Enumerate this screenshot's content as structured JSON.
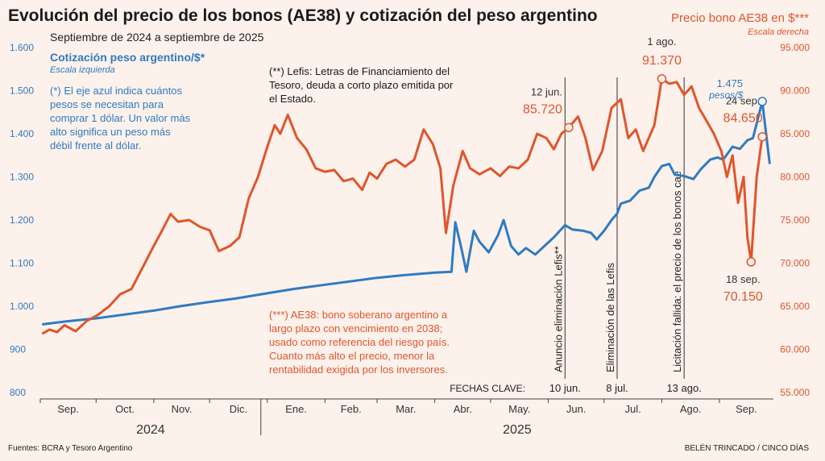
{
  "header": {
    "title": "Evolución del precio de los bonos (AE38) y cotización del peso argentino",
    "subtitle": "Septiembre de 2024 a septiembre de 2025"
  },
  "right_axis": {
    "title": "Precio bono AE38 en $***",
    "subtitle": "Escala derecha"
  },
  "left_axis": {
    "title": "Cotización peso argentino/$*",
    "subtitle": "Escala izquierda"
  },
  "notes": {
    "blue": "(*) El eje azul indica cuántos pesos se necesitan para comprar 1 dólar. Un valor más alto significa un peso más débil frente al dólar.",
    "lefis": "(**) Lefis: Letras de Financiamiento del Tesoro, deuda a corto plazo emitida por el Estado.",
    "ae38": "(***) AE38: bono soberano argentino a largo plazo con vencimiento en 2038; usado como referencia del riesgo país. Cuanto más alto el precio, menor la rentabilidad exigida por los inversores."
  },
  "footer": {
    "source": "Fuentes: BCRA y Tesoro Argentino",
    "credit": "BELÉN TRINCADO / CINCO DÍAS"
  },
  "colors": {
    "peso": "#2f7bc1",
    "bond": "#e0552b",
    "background": "#fdf1ec"
  },
  "chart_data": {
    "type": "line",
    "x_axis": {
      "months": [
        "Sep.",
        "Oct.",
        "Nov.",
        "Dic.",
        "Ene.",
        "Feb.",
        "Mar.",
        "Abr.",
        "May.",
        "Jun.",
        "Jul.",
        "Ago.",
        "Sep."
      ],
      "years": [
        "2024",
        "2025"
      ],
      "range": [
        "2024-09-01",
        "2025-09-30"
      ]
    },
    "left_axis_ticks": [
      "1.600",
      "1.500",
      "1.400",
      "1.300",
      "1.200",
      "1.100",
      "1.000",
      "900",
      "800"
    ],
    "right_axis_ticks": [
      "95.000",
      "90.000",
      "85.000",
      "80.000",
      "75.000",
      "70.000",
      "65.000",
      "60.000",
      "55.000"
    ],
    "ylim_left": [
      800,
      1600
    ],
    "ylim_right": [
      55000,
      95000
    ],
    "key_dates_label": "FECHAS CLAVE:",
    "key_dates": [
      {
        "date": "2025-06-10",
        "label": "10 jun.",
        "event": "Anuncio eliminación Lefis**"
      },
      {
        "date": "2025-07-08",
        "label": "8 jul.",
        "event": "Eliminación de las Lefis"
      },
      {
        "date": "2025-08-13",
        "label": "13 ago.",
        "event": "Licitación fallida: el precio de los bonos cae"
      }
    ],
    "series": [
      {
        "name": "Cotización peso argentino/$*",
        "axis": "left",
        "points": [
          [
            "2024-09-02",
            958
          ],
          [
            "2024-09-15",
            965
          ],
          [
            "2024-10-01",
            972
          ],
          [
            "2024-10-15",
            980
          ],
          [
            "2024-11-01",
            990
          ],
          [
            "2024-11-15",
            1000
          ],
          [
            "2024-12-01",
            1010
          ],
          [
            "2024-12-15",
            1018
          ],
          [
            "2025-01-01",
            1030
          ],
          [
            "2025-01-15",
            1040
          ],
          [
            "2025-02-01",
            1050
          ],
          [
            "2025-02-15",
            1058
          ],
          [
            "2025-03-01",
            1066
          ],
          [
            "2025-03-15",
            1072
          ],
          [
            "2025-04-01",
            1078
          ],
          [
            "2025-04-10",
            1080
          ],
          [
            "2025-04-12",
            1195
          ],
          [
            "2025-04-15",
            1140
          ],
          [
            "2025-04-18",
            1080
          ],
          [
            "2025-04-22",
            1175
          ],
          [
            "2025-04-25",
            1150
          ],
          [
            "2025-04-30",
            1125
          ],
          [
            "2025-05-05",
            1165
          ],
          [
            "2025-05-08",
            1200
          ],
          [
            "2025-05-12",
            1140
          ],
          [
            "2025-05-16",
            1120
          ],
          [
            "2025-05-20",
            1135
          ],
          [
            "2025-05-25",
            1120
          ],
          [
            "2025-05-30",
            1140
          ],
          [
            "2025-06-04",
            1160
          ],
          [
            "2025-06-10",
            1188
          ],
          [
            "2025-06-14",
            1178
          ],
          [
            "2025-06-20",
            1175
          ],
          [
            "2025-06-24",
            1170
          ],
          [
            "2025-06-27",
            1155
          ],
          [
            "2025-07-01",
            1175
          ],
          [
            "2025-07-05",
            1200
          ],
          [
            "2025-07-08",
            1215
          ],
          [
            "2025-07-10",
            1238
          ],
          [
            "2025-07-15",
            1245
          ],
          [
            "2025-07-20",
            1268
          ],
          [
            "2025-07-25",
            1275
          ],
          [
            "2025-07-28",
            1300
          ],
          [
            "2025-08-01",
            1325
          ],
          [
            "2025-08-05",
            1330
          ],
          [
            "2025-08-08",
            1305
          ],
          [
            "2025-08-13",
            1302
          ],
          [
            "2025-08-18",
            1295
          ],
          [
            "2025-08-22",
            1318
          ],
          [
            "2025-08-27",
            1340
          ],
          [
            "2025-08-31",
            1345
          ],
          [
            "2025-09-03",
            1340
          ],
          [
            "2025-09-08",
            1370
          ],
          [
            "2025-09-12",
            1365
          ],
          [
            "2025-09-16",
            1385
          ],
          [
            "2025-09-19",
            1390
          ],
          [
            "2025-09-24",
            1475
          ],
          [
            "2025-09-28",
            1330
          ]
        ]
      },
      {
        "name": "Precio bono AE38 en $***",
        "axis": "right",
        "points": [
          [
            "2024-09-02",
            61800
          ],
          [
            "2024-09-06",
            62300
          ],
          [
            "2024-09-10",
            62000
          ],
          [
            "2024-09-14",
            62800
          ],
          [
            "2024-09-20",
            62100
          ],
          [
            "2024-09-26",
            63300
          ],
          [
            "2024-10-02",
            64000
          ],
          [
            "2024-10-08",
            65000
          ],
          [
            "2024-10-14",
            66400
          ],
          [
            "2024-10-20",
            67000
          ],
          [
            "2024-10-26",
            69500
          ],
          [
            "2024-11-01",
            72000
          ],
          [
            "2024-11-06",
            74000
          ],
          [
            "2024-11-10",
            75700
          ],
          [
            "2024-11-14",
            74800
          ],
          [
            "2024-11-20",
            75000
          ],
          [
            "2024-11-26",
            74200
          ],
          [
            "2024-12-01",
            73800
          ],
          [
            "2024-12-06",
            71400
          ],
          [
            "2024-12-12",
            72000
          ],
          [
            "2024-12-17",
            73000
          ],
          [
            "2024-12-22",
            77500
          ],
          [
            "2024-12-27",
            80000
          ],
          [
            "2025-01-01",
            83500
          ],
          [
            "2025-01-05",
            86000
          ],
          [
            "2025-01-08",
            85000
          ],
          [
            "2025-01-12",
            87200
          ],
          [
            "2025-01-17",
            84500
          ],
          [
            "2025-01-22",
            83200
          ],
          [
            "2025-01-27",
            81000
          ],
          [
            "2025-02-01",
            80600
          ],
          [
            "2025-02-06",
            80800
          ],
          [
            "2025-02-11",
            79500
          ],
          [
            "2025-02-16",
            79800
          ],
          [
            "2025-02-21",
            78500
          ],
          [
            "2025-02-25",
            80500
          ],
          [
            "2025-03-01",
            79800
          ],
          [
            "2025-03-06",
            81500
          ],
          [
            "2025-03-11",
            82000
          ],
          [
            "2025-03-16",
            81200
          ],
          [
            "2025-03-21",
            82000
          ],
          [
            "2025-03-26",
            85500
          ],
          [
            "2025-03-31",
            83800
          ],
          [
            "2025-04-04",
            81000
          ],
          [
            "2025-04-07",
            73500
          ],
          [
            "2025-04-11",
            79000
          ],
          [
            "2025-04-16",
            83000
          ],
          [
            "2025-04-20",
            81000
          ],
          [
            "2025-04-25",
            80300
          ],
          [
            "2025-05-01",
            81000
          ],
          [
            "2025-05-06",
            80100
          ],
          [
            "2025-05-11",
            81200
          ],
          [
            "2025-05-16",
            81000
          ],
          [
            "2025-05-21",
            82000
          ],
          [
            "2025-05-26",
            85000
          ],
          [
            "2025-05-31",
            84500
          ],
          [
            "2025-06-04",
            83200
          ],
          [
            "2025-06-08",
            85000
          ],
          [
            "2025-06-12",
            85720
          ],
          [
            "2025-06-17",
            87000
          ],
          [
            "2025-06-21",
            84500
          ],
          [
            "2025-06-25",
            80800
          ],
          [
            "2025-06-30",
            83000
          ],
          [
            "2025-07-05",
            88000
          ],
          [
            "2025-07-10",
            89000
          ],
          [
            "2025-07-14",
            84500
          ],
          [
            "2025-07-18",
            85500
          ],
          [
            "2025-07-22",
            83000
          ],
          [
            "2025-07-28",
            86000
          ],
          [
            "2025-08-01",
            91370
          ],
          [
            "2025-08-05",
            90800
          ],
          [
            "2025-08-09",
            91000
          ],
          [
            "2025-08-13",
            89500
          ],
          [
            "2025-08-17",
            90500
          ],
          [
            "2025-08-21",
            88000
          ],
          [
            "2025-08-25",
            86500
          ],
          [
            "2025-08-29",
            85000
          ],
          [
            "2025-09-02",
            83000
          ],
          [
            "2025-09-05",
            80000
          ],
          [
            "2025-09-08",
            82500
          ],
          [
            "2025-09-11",
            77000
          ],
          [
            "2025-09-14",
            80000
          ],
          [
            "2025-09-16",
            73000
          ],
          [
            "2025-09-18",
            70150
          ],
          [
            "2025-09-21",
            80000
          ],
          [
            "2025-09-24",
            84650
          ]
        ]
      }
    ],
    "annotations": [
      {
        "date": "2025-06-12",
        "value": 85720,
        "axis": "right",
        "label_date": "12 jun.",
        "label_value": "85.720"
      },
      {
        "date": "2025-08-01",
        "value": 91370,
        "axis": "right",
        "label_date": "1 ago.",
        "label_value": "91.370"
      },
      {
        "date": "2025-09-24",
        "value": 84650,
        "axis": "right",
        "label_date": "24 sep.",
        "label_value": "84.650"
      },
      {
        "date": "2025-09-18",
        "value": 70150,
        "axis": "right",
        "label_date": "18 sep.",
        "label_value": "70.150"
      },
      {
        "date": "2025-09-24",
        "value": 1475,
        "axis": "left",
        "label_date": "",
        "label_value": "1.475",
        "unit": "pesos/$"
      }
    ]
  }
}
